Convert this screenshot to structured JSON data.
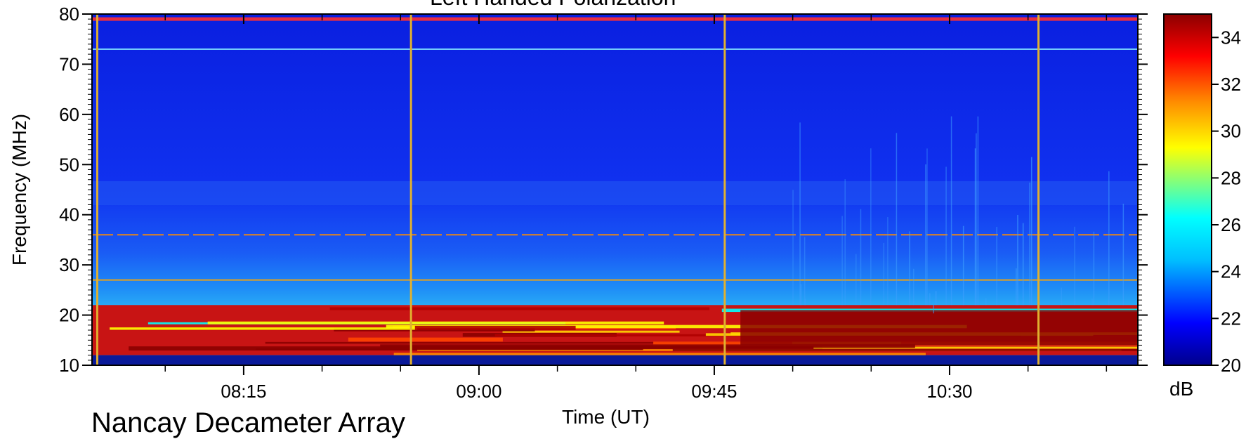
{
  "chart_data": {
    "type": "heatmap",
    "title": "Left Handed Polarization",
    "observatory": "Nancay Decameter Array",
    "xlabel": "Time (UT)",
    "ylabel": "Frequency (MHz)",
    "x_ticks": [
      {
        "minutes": 495,
        "label": "08:15"
      },
      {
        "minutes": 540,
        "label": "09:00"
      },
      {
        "minutes": 585,
        "label": "09:45"
      },
      {
        "minutes": 630,
        "label": "10:30"
      }
    ],
    "xlim_minutes": [
      466,
      666
    ],
    "y_ticks": [
      10,
      20,
      30,
      40,
      50,
      60,
      70,
      80
    ],
    "ylim": [
      10,
      80
    ],
    "colorbar": {
      "unit": "dB",
      "ticks": [
        20,
        22,
        24,
        26,
        28,
        30,
        32,
        34
      ],
      "range": [
        20,
        35
      ],
      "colors": [
        "#00008b",
        "#0000ff",
        "#00bfff",
        "#00ffff",
        "#7fff7f",
        "#ffff00",
        "#ff8c00",
        "#ff0000",
        "#8b0000"
      ]
    },
    "features": {
      "background_db": 20.5,
      "vertical_calibration_lines_minutes": [
        467,
        527,
        587,
        647
      ],
      "interference_lines_mhz": [
        79,
        73,
        36,
        27
      ],
      "strong_band_mhz": [
        12,
        22
      ]
    }
  }
}
